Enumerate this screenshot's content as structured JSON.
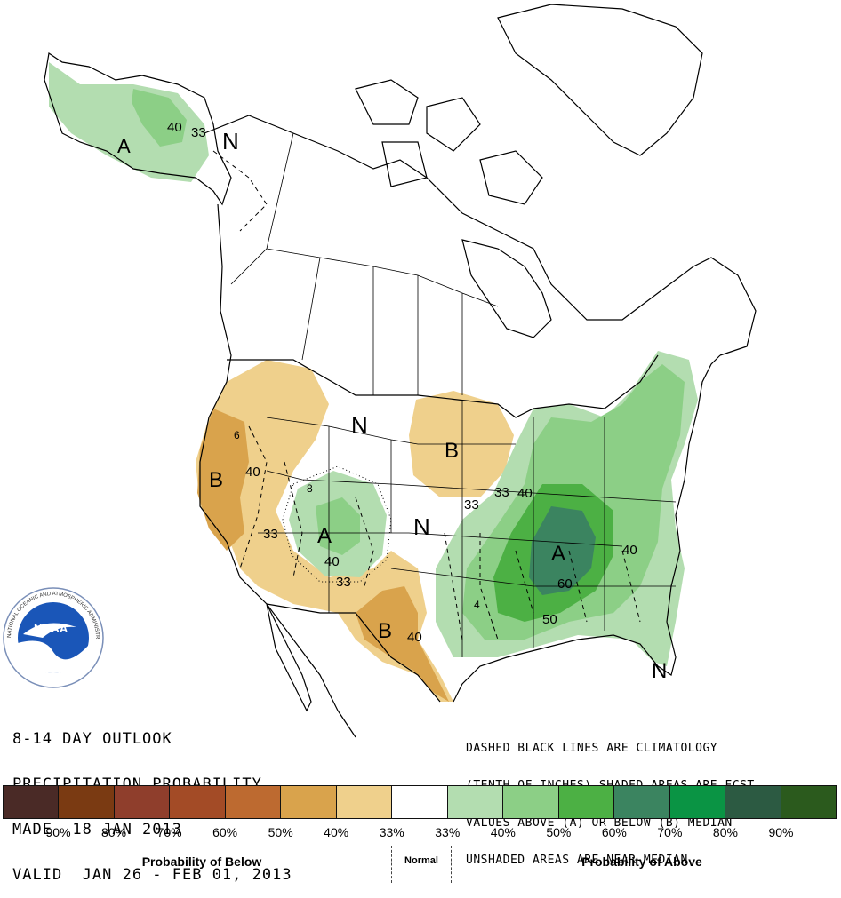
{
  "header": {
    "line1": "8-14 DAY OUTLOOK",
    "line2": "PRECIPITATION PROBABILITY",
    "line3": "MADE  18 JAN 2013",
    "line4": "VALID  JAN 26 - FEB 01, 2013"
  },
  "note": {
    "line1": "DASHED BLACK LINES ARE CLIMATOLOGY",
    "line2": "(TENTH OF INCHES) SHADED AREAS ARE FCST",
    "line3": "VALUES ABOVE (A) OR BELOW (B) MEDIAN",
    "line4": "UNSHADED AREAS ARE NEAR-MEDIAN"
  },
  "logo": {
    "text": "NOAA",
    "ring_text": "NATIONAL OCEANIC AND ATMOSPHERIC ADMINISTRATION"
  },
  "map_labels": {
    "n_alaska": "N",
    "a_alaska": "A",
    "c40_alaska": "40",
    "c33_alaska": "33",
    "n_north": "N",
    "b_northcentral": "B",
    "b_west": "B",
    "a_rockies": "A",
    "n_plains": "N",
    "b_texas": "B",
    "a_southeast": "A",
    "n_florida": "N",
    "c40_west": "40",
    "c33_west": "33",
    "c40_rockies": "40",
    "c33_rockies": "33",
    "c40_texas": "40",
    "c33_midwest1": "33",
    "c33_midwest2": "33",
    "c40_midwest": "40",
    "c60_southeast": "60",
    "c50_southeast": "50",
    "c40_eastcoast": "40",
    "c6_west": "6",
    "c8_rockies": "8",
    "c4_south": "4"
  },
  "legend": {
    "colors": [
      "#4a2a26",
      "#7a3a12",
      "#8f3e2c",
      "#a34b26",
      "#bd6a30",
      "#d9a34c",
      "#efd08c",
      "#ffffff",
      "#b3ddb0",
      "#8ccf86",
      "#4cb044",
      "#3b8460",
      "#0a9444",
      "#2c5a42",
      "#2b5a1d"
    ],
    "ticks": [
      "90%",
      "80%",
      "70%",
      "60%",
      "50%",
      "40%",
      "33%",
      "33%",
      "40%",
      "50%",
      "60%",
      "70%",
      "80%",
      "90%"
    ],
    "below_title": "Probability of Below",
    "normal_title": "Normal",
    "above_title": "Probability of Above"
  }
}
